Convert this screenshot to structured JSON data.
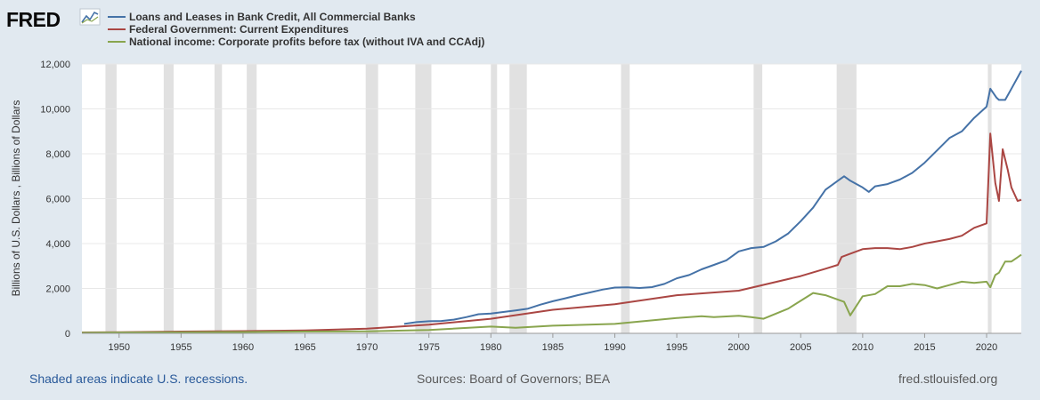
{
  "logo": {
    "text": "FRED"
  },
  "chart_data": {
    "type": "line",
    "ylabel": "Billions of U.S. Dollars , Billions of Dollars",
    "ylim": [
      0,
      12000
    ],
    "yticks": [
      0,
      2000,
      4000,
      6000,
      8000,
      10000,
      12000
    ],
    "ytick_labels": [
      "0",
      "2,000",
      "4,000",
      "6,000",
      "8,000",
      "10,000",
      "12,000"
    ],
    "xlim": [
      1947,
      2022.8
    ],
    "xticks": [
      1950,
      1955,
      1960,
      1965,
      1970,
      1975,
      1980,
      1985,
      1990,
      1995,
      2000,
      2005,
      2010,
      2015,
      2020
    ],
    "grid": "horizontal",
    "legend_position": "top-left",
    "recessions": [
      [
        1948.9,
        1949.8
      ],
      [
        1953.6,
        1954.4
      ],
      [
        1957.7,
        1958.3
      ],
      [
        1960.3,
        1961.1
      ],
      [
        1969.9,
        1970.9
      ],
      [
        1973.9,
        1975.2
      ],
      [
        1980.0,
        1980.5
      ],
      [
        1981.5,
        1982.9
      ],
      [
        1990.5,
        1991.2
      ],
      [
        2001.2,
        2001.9
      ],
      [
        2007.9,
        2009.5
      ],
      [
        2020.1,
        2020.4
      ]
    ],
    "series": [
      {
        "name": "Loans and Leases in Bank Credit, All Commercial Banks",
        "color": "#4572a7",
        "x": [
          1973,
          1974,
          1975,
          1976,
          1977,
          1978,
          1979,
          1980,
          1981,
          1982,
          1983,
          1984,
          1985,
          1986,
          1987,
          1988,
          1989,
          1990,
          1991,
          1992,
          1993,
          1994,
          1995,
          1996,
          1997,
          1998,
          1999,
          2000,
          2001,
          2002,
          2003,
          2004,
          2005,
          2006,
          2007,
          2008,
          2008.5,
          2009,
          2010,
          2010.5,
          2011,
          2012,
          2013,
          2014,
          2015,
          2016,
          2017,
          2018,
          2019,
          2020,
          2020.3,
          2020.8,
          2021,
          2021.5,
          2022,
          2022.8
        ],
        "y": [
          420,
          500,
          540,
          550,
          610,
          720,
          850,
          880,
          950,
          1020,
          1100,
          1280,
          1430,
          1560,
          1700,
          1820,
          1950,
          2040,
          2050,
          2020,
          2060,
          2200,
          2450,
          2600,
          2850,
          3050,
          3250,
          3650,
          3800,
          3850,
          4100,
          4450,
          5000,
          5600,
          6400,
          6800,
          7000,
          6800,
          6500,
          6300,
          6550,
          6650,
          6850,
          7150,
          7600,
          8150,
          8700,
          9000,
          9600,
          10100,
          10900,
          10500,
          10400,
          10400,
          10900,
          11700
        ]
      },
      {
        "name": "Federal Government: Current Expenditures",
        "color": "#aa4643",
        "x": [
          1947,
          1950,
          1955,
          1960,
          1965,
          1970,
          1975,
          1980,
          1985,
          1990,
          1995,
          2000,
          2005,
          2007,
          2008,
          2008.3,
          2009,
          2010,
          2011,
          2012,
          2013,
          2014,
          2015,
          2016,
          2017,
          2018,
          2019,
          2020,
          2020.3,
          2020.7,
          2021,
          2021.3,
          2021.7,
          2022,
          2022.5,
          2022.8
        ],
        "y": [
          40,
          50,
          80,
          100,
          130,
          210,
          390,
          650,
          1050,
          1300,
          1700,
          1900,
          2550,
          2880,
          3050,
          3400,
          3550,
          3750,
          3800,
          3800,
          3750,
          3850,
          4000,
          4100,
          4200,
          4350,
          4700,
          4900,
          8900,
          6700,
          5900,
          8200,
          7300,
          6500,
          5900,
          5950
        ]
      },
      {
        "name": "National income: Corporate profits before tax (without IVA and CCAdj)",
        "color": "#89a54e",
        "x": [
          1947,
          1950,
          1955,
          1960,
          1965,
          1970,
          1975,
          1980,
          1982,
          1985,
          1990,
          1995,
          1997,
          1998,
          2000,
          2001,
          2002,
          2004,
          2006,
          2007,
          2008,
          2008.5,
          2009,
          2010,
          2011,
          2012,
          2013,
          2014,
          2015,
          2016,
          2017,
          2018,
          2019,
          2020,
          2020.3,
          2020.7,
          2021,
          2021.5,
          2022,
          2022.8
        ],
        "y": [
          30,
          40,
          50,
          60,
          80,
          90,
          150,
          300,
          250,
          340,
          420,
          680,
          760,
          720,
          780,
          720,
          650,
          1100,
          1800,
          1700,
          1500,
          1400,
          800,
          1650,
          1750,
          2100,
          2100,
          2200,
          2150,
          2000,
          2150,
          2300,
          2250,
          2300,
          2050,
          2600,
          2700,
          3200,
          3200,
          3500
        ]
      }
    ]
  },
  "footer": {
    "recession_note": "Shaded areas indicate U.S. recessions.",
    "sources": "Sources: Board of Governors; BEA",
    "site": "fred.stlouisfed.org"
  }
}
